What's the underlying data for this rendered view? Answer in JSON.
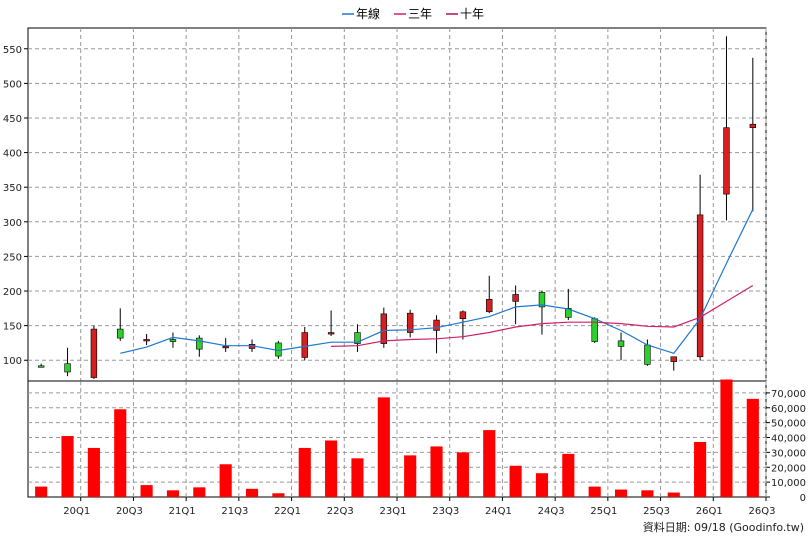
{
  "chart_data": {
    "type": "candlestick",
    "legend": [
      {
        "label": "年線",
        "color": "#1f78d1"
      },
      {
        "label": "三年",
        "color": "#d0206a"
      },
      {
        "label": "十年",
        "color": "#b0105a"
      }
    ],
    "legend_position": "top-center",
    "grid": true,
    "up_color": "#d42020",
    "down_color": "#2bd02b",
    "price_axis": {
      "ylim": [
        70,
        580
      ],
      "ticks": [
        100,
        150,
        200,
        250,
        300,
        350,
        400,
        450,
        500,
        550
      ],
      "side": "left"
    },
    "volume_axis": {
      "ylim": [
        0,
        78000
      ],
      "ticks": [
        "0",
        "10,000",
        "20,000",
        "30,000",
        "40,000",
        "50,000",
        "60,000",
        "70,000"
      ],
      "tick_values": [
        0,
        10000,
        20000,
        30000,
        40000,
        50000,
        60000,
        70000
      ],
      "side": "right"
    },
    "x_labels": [
      "20Q1",
      "20Q3",
      "21Q1",
      "21Q3",
      "22Q1",
      "22Q3",
      "23Q1",
      "23Q3",
      "24Q1",
      "24Q3",
      "25Q1",
      "25Q3",
      "26Q1",
      "26Q3"
    ],
    "label_every": 2,
    "label_offset": 1,
    "candles": [
      {
        "o": 92,
        "h": 95,
        "l": 90,
        "c": 91
      },
      {
        "o": 95,
        "h": 118,
        "l": 77,
        "c": 83
      },
      {
        "o": 75,
        "h": 150,
        "l": 73,
        "c": 145
      },
      {
        "o": 145,
        "h": 175,
        "l": 128,
        "c": 132
      },
      {
        "o": 128,
        "h": 138,
        "l": 122,
        "c": 130
      },
      {
        "o": 130,
        "h": 140,
        "l": 118,
        "c": 127
      },
      {
        "o": 132,
        "h": 136,
        "l": 105,
        "c": 116
      },
      {
        "o": 118,
        "h": 132,
        "l": 112,
        "c": 120
      },
      {
        "o": 117,
        "h": 130,
        "l": 112,
        "c": 123
      },
      {
        "o": 125,
        "h": 128,
        "l": 102,
        "c": 106
      },
      {
        "o": 104,
        "h": 148,
        "l": 100,
        "c": 140
      },
      {
        "o": 138,
        "h": 172,
        "l": 135,
        "c": 140
      },
      {
        "o": 140,
        "h": 152,
        "l": 112,
        "c": 124
      },
      {
        "o": 124,
        "h": 176,
        "l": 118,
        "c": 167
      },
      {
        "o": 140,
        "h": 173,
        "l": 133,
        "c": 168
      },
      {
        "o": 143,
        "h": 165,
        "l": 110,
        "c": 158
      },
      {
        "o": 160,
        "h": 172,
        "l": 130,
        "c": 170
      },
      {
        "o": 170,
        "h": 222,
        "l": 168,
        "c": 188
      },
      {
        "o": 185,
        "h": 208,
        "l": 152,
        "c": 195
      },
      {
        "o": 198,
        "h": 200,
        "l": 137,
        "c": 177
      },
      {
        "o": 175,
        "h": 203,
        "l": 158,
        "c": 162
      },
      {
        "o": 160,
        "h": 162,
        "l": 125,
        "c": 127
      },
      {
        "o": 128,
        "h": 140,
        "l": 100,
        "c": 120
      },
      {
        "o": 122,
        "h": 130,
        "l": 92,
        "c": 94
      },
      {
        "o": 98,
        "h": 105,
        "l": 85,
        "c": 105
      },
      {
        "o": 105,
        "h": 368,
        "l": 100,
        "c": 310
      },
      {
        "o": 340,
        "h": 568,
        "l": 302,
        "c": 436
      },
      {
        "o": 436,
        "h": 537,
        "l": 315,
        "c": 441
      }
    ],
    "volume": [
      7000,
      41000,
      33000,
      59000,
      8000,
      4500,
      6500,
      22000,
      5500,
      2500,
      33000,
      38000,
      26000,
      67000,
      28000,
      34000,
      30000,
      45000,
      21000,
      16000,
      29000,
      7000,
      5000,
      4500,
      3000,
      37000,
      79000,
      66000
    ],
    "series": [
      {
        "name": "年線",
        "color": "#1f78d1",
        "start": 3,
        "values": [
          110,
          119,
          133,
          128,
          121,
          121,
          114,
          120,
          126,
          126,
          143,
          144,
          147,
          155,
          163,
          177,
          180,
          174,
          160,
          143,
          122,
          110,
          160,
          240,
          318
        ]
      },
      {
        "name": "三年",
        "color": "#d0206a",
        "start": 11,
        "values": [
          120,
          121,
          128,
          130,
          131,
          134,
          140,
          148,
          153,
          155,
          155,
          153,
          149,
          148,
          162,
          185,
          208
        ]
      }
    ],
    "source": "資料日期: 09/18 (Goodinfo.tw)"
  }
}
